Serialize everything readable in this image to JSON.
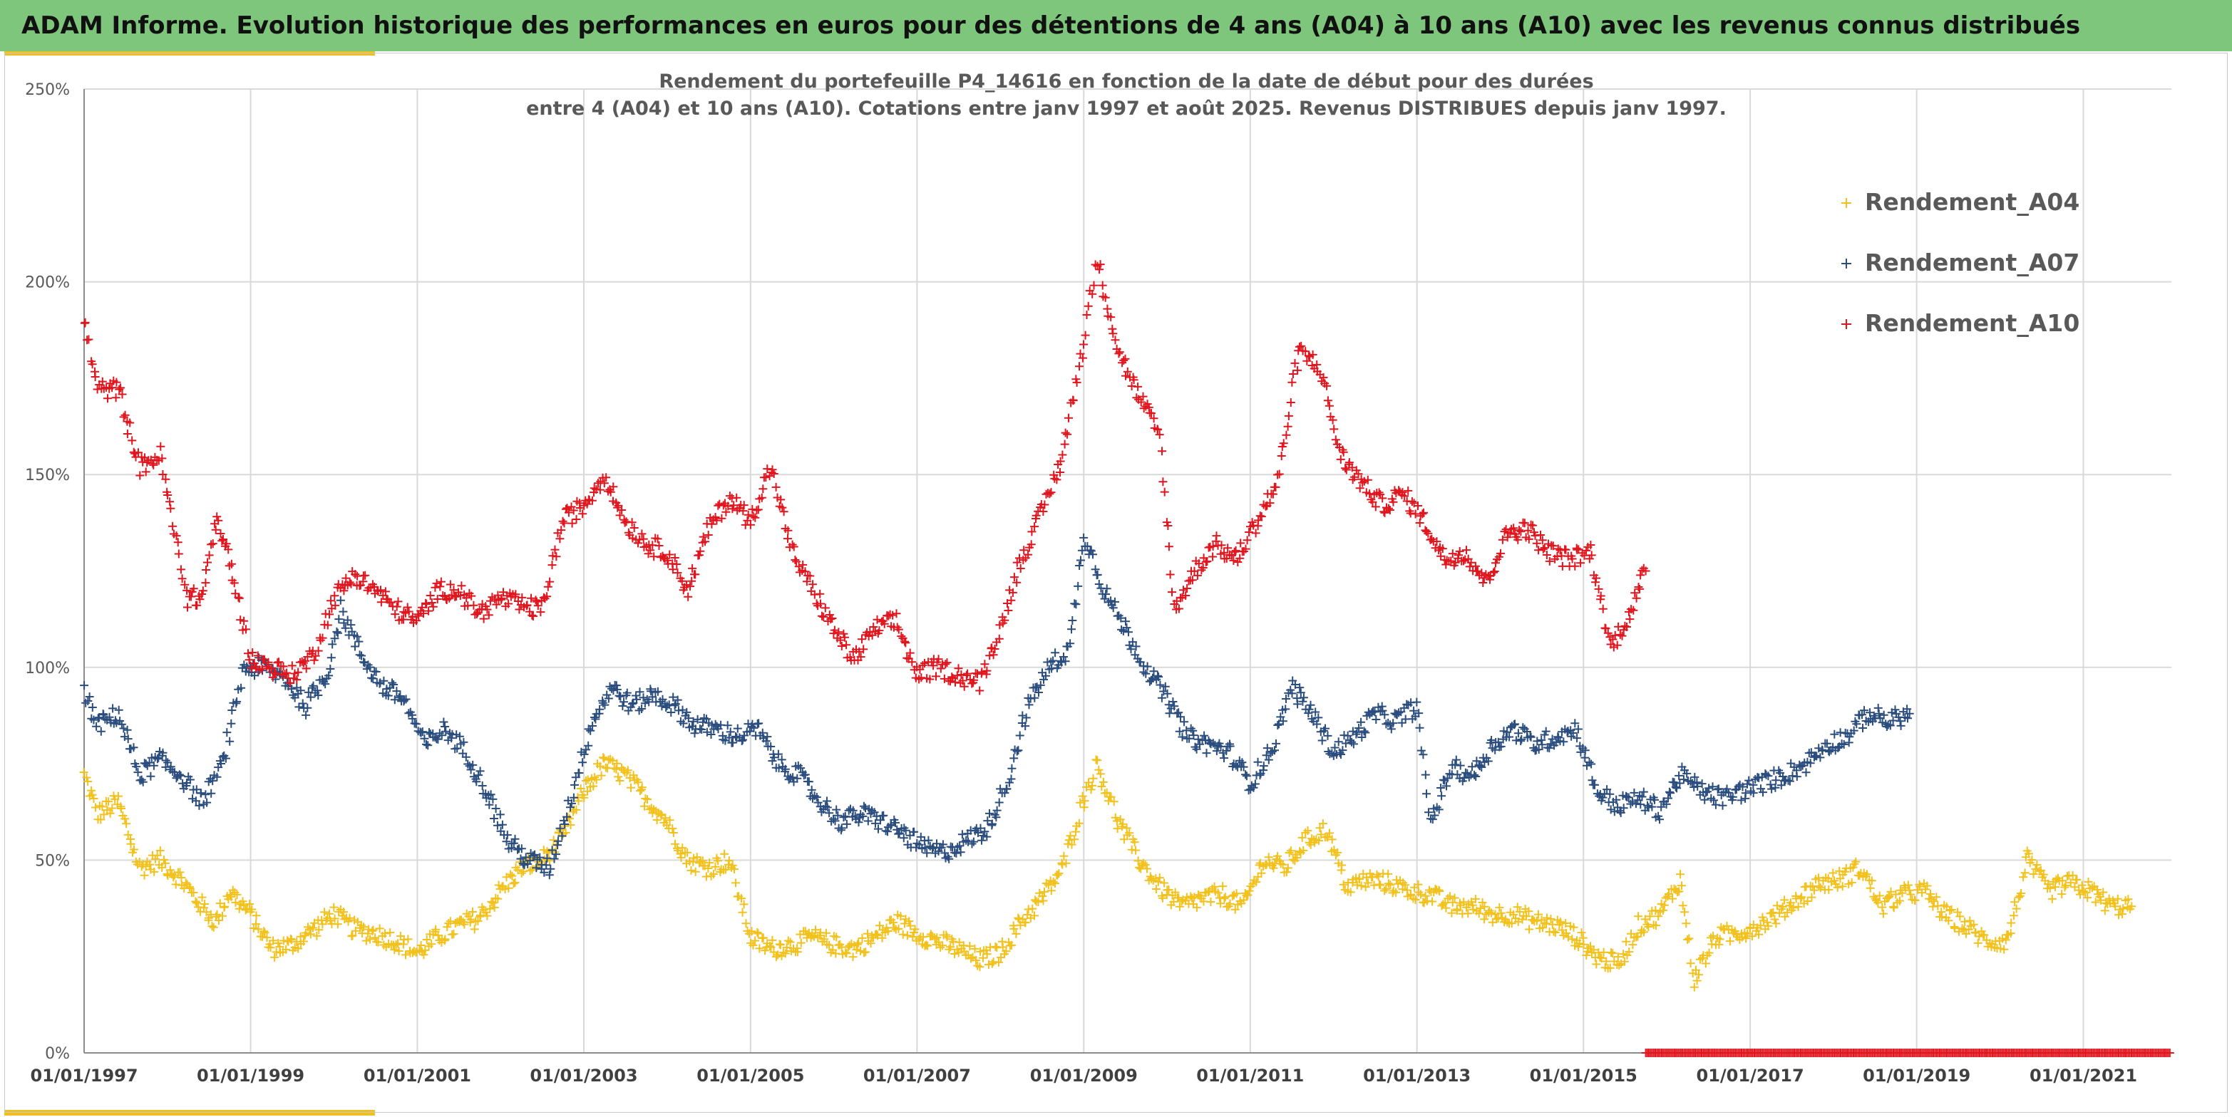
{
  "header": {
    "title": "ADAM Informe. Evolution historique des performances en euros pour des détentions de 4 ans (A04) à 10 ans (A10) avec les revenus connus distribués"
  },
  "colors": {
    "header_bg": "#7dc67b",
    "accent": "#f0c020",
    "a04": "#f2c11c",
    "a07": "#2a4d7e",
    "a10": "#e0151d",
    "grid": "#d9d9d9"
  },
  "chart_data": {
    "type": "scatter",
    "title": [
      "Rendement du portefeuille P4_14616 en fonction de la date de début pour des durées",
      "entre 4 (A04) et 10 ans (A10). Cotations entre janv 1997 et août 2025. Revenus DISTRIBUES depuis janv 1997."
    ],
    "xlim": [
      "1997-01-01",
      "2022-01-22"
    ],
    "ylim": [
      0,
      250
    ],
    "grid": true,
    "legend_position": "top-right",
    "marker": "+",
    "x_ticks": [
      "01/01/1997",
      "01/01/1999",
      "01/01/2001",
      "01/01/2003",
      "01/01/2005",
      "01/01/2007",
      "01/01/2009",
      "01/01/2011",
      "01/01/2013",
      "01/01/2015",
      "01/01/2017",
      "01/01/2019",
      "01/01/2021"
    ],
    "y_ticks": [
      "0%",
      "50%",
      "100%",
      "150%",
      "200%",
      "250%"
    ],
    "series": [
      {
        "name": "Rendement_A04",
        "color": "#f2c11c",
        "points": [
          [
            "1997-01-01",
            72
          ],
          [
            "1997-03-01",
            62
          ],
          [
            "1997-06-01",
            65
          ],
          [
            "1997-09-01",
            48
          ],
          [
            "1997-12-01",
            50
          ],
          [
            "1998-03-01",
            45
          ],
          [
            "1998-06-01",
            38
          ],
          [
            "1998-08-01",
            34
          ],
          [
            "1998-10-01",
            42
          ],
          [
            "1999-01-01",
            36
          ],
          [
            "1999-04-01",
            27
          ],
          [
            "1999-07-01",
            28
          ],
          [
            "1999-10-01",
            32
          ],
          [
            "2000-01-01",
            36
          ],
          [
            "2000-04-01",
            32
          ],
          [
            "2000-07-01",
            31
          ],
          [
            "2000-10-01",
            29
          ],
          [
            "2001-01-01",
            26
          ],
          [
            "2001-04-01",
            30
          ],
          [
            "2001-07-01",
            33
          ],
          [
            "2001-10-01",
            35
          ],
          [
            "2002-01-01",
            42
          ],
          [
            "2002-04-01",
            48
          ],
          [
            "2002-07-01",
            50
          ],
          [
            "2002-10-01",
            56
          ],
          [
            "2003-01-01",
            68
          ],
          [
            "2003-04-01",
            75
          ],
          [
            "2003-07-01",
            72
          ],
          [
            "2003-10-01",
            66
          ],
          [
            "2004-01-01",
            60
          ],
          [
            "2004-04-01",
            50
          ],
          [
            "2004-07-01",
            48
          ],
          [
            "2004-10-01",
            50
          ],
          [
            "2005-01-01",
            30
          ],
          [
            "2005-04-01",
            27
          ],
          [
            "2005-07-01",
            28
          ],
          [
            "2005-10-01",
            30
          ],
          [
            "2006-01-01",
            28
          ],
          [
            "2006-04-01",
            27
          ],
          [
            "2006-07-01",
            30
          ],
          [
            "2006-10-01",
            34
          ],
          [
            "2007-01-01",
            31
          ],
          [
            "2007-04-01",
            29
          ],
          [
            "2007-07-01",
            27
          ],
          [
            "2007-10-01",
            24
          ],
          [
            "2008-01-01",
            26
          ],
          [
            "2008-04-01",
            34
          ],
          [
            "2008-07-01",
            40
          ],
          [
            "2008-10-01",
            48
          ],
          [
            "2009-01-01",
            66
          ],
          [
            "2009-03-01",
            75
          ],
          [
            "2009-06-01",
            60
          ],
          [
            "2009-09-01",
            50
          ],
          [
            "2009-12-01",
            43
          ],
          [
            "2010-03-01",
            38
          ],
          [
            "2010-06-01",
            40
          ],
          [
            "2010-09-01",
            41
          ],
          [
            "2010-12-01",
            38
          ],
          [
            "2011-03-01",
            50
          ],
          [
            "2011-06-01",
            48
          ],
          [
            "2011-09-01",
            55
          ],
          [
            "2011-12-01",
            58
          ],
          [
            "2012-03-01",
            43
          ],
          [
            "2012-06-01",
            45
          ],
          [
            "2012-09-01",
            44
          ],
          [
            "2012-12-01",
            42
          ],
          [
            "2013-03-01",
            41
          ],
          [
            "2013-06-01",
            38
          ],
          [
            "2013-09-01",
            38
          ],
          [
            "2013-12-01",
            36
          ],
          [
            "2014-03-01",
            36
          ],
          [
            "2014-06-01",
            34
          ],
          [
            "2014-09-01",
            33
          ],
          [
            "2014-12-01",
            30
          ],
          [
            "2015-03-01",
            25
          ],
          [
            "2015-06-01",
            23
          ],
          [
            "2015-09-01",
            33
          ],
          [
            "2015-12-01",
            36
          ],
          [
            "2016-03-01",
            45
          ],
          [
            "2016-05-01",
            19
          ],
          [
            "2016-08-01",
            30
          ],
          [
            "2016-11-01",
            31
          ],
          [
            "2017-02-01",
            33
          ],
          [
            "2017-05-01",
            36
          ],
          [
            "2017-08-01",
            40
          ],
          [
            "2017-11-01",
            44
          ],
          [
            "2018-02-01",
            45
          ],
          [
            "2018-05-01",
            48
          ],
          [
            "2018-08-01",
            38
          ],
          [
            "2018-11-01",
            41
          ],
          [
            "2019-02-01",
            42
          ],
          [
            "2019-05-01",
            36
          ],
          [
            "2019-08-01",
            33
          ],
          [
            "2019-11-01",
            29
          ],
          [
            "2020-02-01",
            29
          ],
          [
            "2020-05-01",
            50
          ],
          [
            "2020-08-01",
            42
          ],
          [
            "2020-11-01",
            44
          ],
          [
            "2021-02-01",
            42
          ],
          [
            "2021-05-01",
            38
          ],
          [
            "2021-08-01",
            38
          ]
        ]
      },
      {
        "name": "Rendement_A07",
        "color": "#2a4d7e",
        "points": [
          [
            "1997-01-01",
            93
          ],
          [
            "1997-03-01",
            85
          ],
          [
            "1997-06-01",
            88
          ],
          [
            "1997-09-01",
            72
          ],
          [
            "1997-12-01",
            76
          ],
          [
            "1998-03-01",
            72
          ],
          [
            "1998-06-01",
            65
          ],
          [
            "1998-09-01",
            75
          ],
          [
            "1998-12-01",
            100
          ],
          [
            "1999-03-01",
            100
          ],
          [
            "1999-06-01",
            97
          ],
          [
            "1999-09-01",
            90
          ],
          [
            "1999-12-01",
            98
          ],
          [
            "2000-02-01",
            115
          ],
          [
            "2000-05-01",
            103
          ],
          [
            "2000-08-01",
            95
          ],
          [
            "2000-11-01",
            92
          ],
          [
            "2001-02-01",
            80
          ],
          [
            "2001-05-01",
            84
          ],
          [
            "2001-08-01",
            78
          ],
          [
            "2001-11-01",
            68
          ],
          [
            "2002-02-01",
            55
          ],
          [
            "2002-05-01",
            50
          ],
          [
            "2002-08-01",
            48
          ],
          [
            "2002-11-01",
            65
          ],
          [
            "2003-02-01",
            85
          ],
          [
            "2003-05-01",
            95
          ],
          [
            "2003-08-01",
            90
          ],
          [
            "2003-11-01",
            93
          ],
          [
            "2004-02-01",
            90
          ],
          [
            "2004-05-01",
            85
          ],
          [
            "2004-08-01",
            84
          ],
          [
            "2004-11-01",
            82
          ],
          [
            "2005-02-01",
            84
          ],
          [
            "2005-05-01",
            75
          ],
          [
            "2005-08-01",
            72
          ],
          [
            "2005-11-01",
            65
          ],
          [
            "2006-02-01",
            60
          ],
          [
            "2006-05-01",
            62
          ],
          [
            "2006-08-01",
            60
          ],
          [
            "2006-11-01",
            57
          ],
          [
            "2007-02-01",
            53
          ],
          [
            "2007-05-01",
            52
          ],
          [
            "2007-08-01",
            55
          ],
          [
            "2007-11-01",
            58
          ],
          [
            "2008-02-01",
            70
          ],
          [
            "2008-05-01",
            90
          ],
          [
            "2008-08-01",
            100
          ],
          [
            "2008-11-01",
            105
          ],
          [
            "2009-01-01",
            135
          ],
          [
            "2009-04-01",
            120
          ],
          [
            "2009-07-01",
            110
          ],
          [
            "2009-10-01",
            100
          ],
          [
            "2010-01-01",
            92
          ],
          [
            "2010-04-01",
            82
          ],
          [
            "2010-07-01",
            80
          ],
          [
            "2010-10-01",
            78
          ],
          [
            "2011-01-01",
            70
          ],
          [
            "2011-04-01",
            78
          ],
          [
            "2011-07-01",
            95
          ],
          [
            "2011-10-01",
            88
          ],
          [
            "2012-01-01",
            78
          ],
          [
            "2012-04-01",
            82
          ],
          [
            "2012-07-01",
            88
          ],
          [
            "2012-10-01",
            86
          ],
          [
            "2013-01-01",
            90
          ],
          [
            "2013-03-01",
            60
          ],
          [
            "2013-06-01",
            74
          ],
          [
            "2013-09-01",
            72
          ],
          [
            "2013-12-01",
            80
          ],
          [
            "2014-03-01",
            84
          ],
          [
            "2014-06-01",
            80
          ],
          [
            "2014-09-01",
            82
          ],
          [
            "2014-12-01",
            84
          ],
          [
            "2015-03-01",
            68
          ],
          [
            "2015-06-01",
            64
          ],
          [
            "2015-09-01",
            66
          ],
          [
            "2015-12-01",
            63
          ],
          [
            "2016-03-01",
            72
          ],
          [
            "2016-06-01",
            68
          ],
          [
            "2016-09-01",
            66
          ],
          [
            "2016-12-01",
            68
          ],
          [
            "2017-03-01",
            70
          ],
          [
            "2017-06-01",
            72
          ],
          [
            "2017-09-01",
            75
          ],
          [
            "2017-12-01",
            80
          ],
          [
            "2018-03-01",
            82
          ],
          [
            "2018-06-01",
            88
          ],
          [
            "2018-09-01",
            86
          ],
          [
            "2018-12-01",
            88
          ]
        ]
      },
      {
        "name": "Rendement_A10",
        "color": "#e0151d",
        "points": [
          [
            "1997-01-01",
            190
          ],
          [
            "1997-03-01",
            172
          ],
          [
            "1997-06-01",
            172
          ],
          [
            "1997-09-01",
            152
          ],
          [
            "1997-12-01",
            155
          ],
          [
            "1998-02-01",
            135
          ],
          [
            "1998-04-01",
            118
          ],
          [
            "1998-06-01",
            118
          ],
          [
            "1998-08-01",
            138
          ],
          [
            "1998-10-01",
            128
          ],
          [
            "1999-01-01",
            102
          ],
          [
            "1999-04-01",
            100
          ],
          [
            "1999-07-01",
            98
          ],
          [
            "1999-10-01",
            103
          ],
          [
            "2000-01-01",
            118
          ],
          [
            "2000-04-01",
            124
          ],
          [
            "2000-07-01",
            120
          ],
          [
            "2000-10-01",
            115
          ],
          [
            "2001-01-01",
            112
          ],
          [
            "2001-04-01",
            120
          ],
          [
            "2001-07-01",
            120
          ],
          [
            "2001-10-01",
            114
          ],
          [
            "2002-01-01",
            118
          ],
          [
            "2002-04-01",
            116
          ],
          [
            "2002-07-01",
            115
          ],
          [
            "2002-10-01",
            138
          ],
          [
            "2003-01-01",
            142
          ],
          [
            "2003-04-01",
            150
          ],
          [
            "2003-07-01",
            138
          ],
          [
            "2003-10-01",
            132
          ],
          [
            "2004-01-01",
            130
          ],
          [
            "2004-04-01",
            120
          ],
          [
            "2004-07-01",
            136
          ],
          [
            "2004-10-01",
            144
          ],
          [
            "2005-01-01",
            138
          ],
          [
            "2005-04-01",
            152
          ],
          [
            "2005-07-01",
            130
          ],
          [
            "2005-10-01",
            120
          ],
          [
            "2006-01-01",
            110
          ],
          [
            "2006-04-01",
            102
          ],
          [
            "2006-07-01",
            110
          ],
          [
            "2006-10-01",
            112
          ],
          [
            "2007-01-01",
            98
          ],
          [
            "2007-04-01",
            100
          ],
          [
            "2007-07-01",
            98
          ],
          [
            "2007-10-01",
            96
          ],
          [
            "2008-01-01",
            110
          ],
          [
            "2008-04-01",
            128
          ],
          [
            "2008-07-01",
            140
          ],
          [
            "2008-10-01",
            155
          ],
          [
            "2009-01-01",
            185
          ],
          [
            "2009-03-01",
            206
          ],
          [
            "2009-06-01",
            182
          ],
          [
            "2009-09-01",
            170
          ],
          [
            "2009-12-01",
            160
          ],
          [
            "2010-02-01",
            115
          ],
          [
            "2010-05-01",
            125
          ],
          [
            "2010-08-01",
            132
          ],
          [
            "2010-11-01",
            128
          ],
          [
            "2011-02-01",
            138
          ],
          [
            "2011-05-01",
            148
          ],
          [
            "2011-08-01",
            182
          ],
          [
            "2011-11-01",
            178
          ],
          [
            "2012-02-01",
            155
          ],
          [
            "2012-05-01",
            148
          ],
          [
            "2012-08-01",
            142
          ],
          [
            "2012-11-01",
            145
          ],
          [
            "2013-02-01",
            138
          ],
          [
            "2013-05-01",
            128
          ],
          [
            "2013-08-01",
            130
          ],
          [
            "2013-11-01",
            122
          ],
          [
            "2014-02-01",
            135
          ],
          [
            "2014-05-01",
            136
          ],
          [
            "2014-08-01",
            130
          ],
          [
            "2014-11-01",
            128
          ],
          [
            "2015-02-01",
            130
          ],
          [
            "2015-05-01",
            105
          ],
          [
            "2015-08-01",
            115
          ],
          [
            "2015-10-01",
            125
          ]
        ]
      },
      {
        "name": "",
        "color": "#e0151d",
        "note_points": [
          [
            "2015-10-01",
            0
          ],
          [
            "2022-01-15",
            0
          ]
        ]
      }
    ]
  }
}
